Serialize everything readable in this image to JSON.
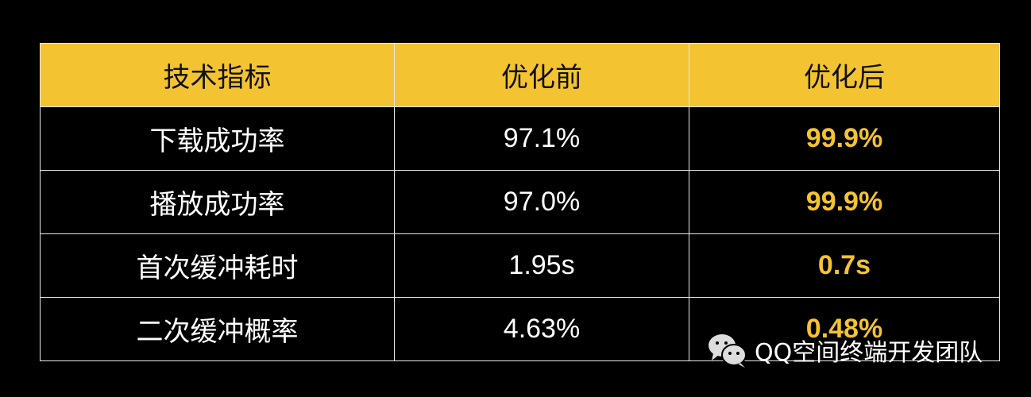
{
  "accent_color": "#F4C331",
  "headers": [
    "技术指标",
    "优化前",
    "优化后"
  ],
  "rows": [
    {
      "metric": "下载成功率",
      "before": "97.1%",
      "after": "99.9%"
    },
    {
      "metric": "播放成功率",
      "before": "97.0%",
      "after": "99.9%"
    },
    {
      "metric": "首次缓冲耗时",
      "before": "1.95s",
      "after": "0.7s"
    },
    {
      "metric": "二次缓冲概率",
      "before": "4.63%",
      "after": "0.48%"
    }
  ],
  "watermark": {
    "icon": "wechat-icon",
    "text": "QQ空间终端开发团队"
  }
}
